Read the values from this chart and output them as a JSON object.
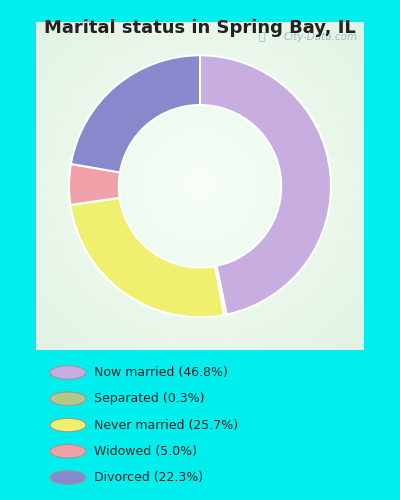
{
  "title": "Marital status in Spring Bay, IL",
  "title_fontsize": 13,
  "slices": [
    46.8,
    0.3,
    25.7,
    5.0,
    22.3
  ],
  "labels": [
    "Now married (46.8%)",
    "Separated (0.3%)",
    "Never married (25.7%)",
    "Widowed (5.0%)",
    "Divorced (22.3%)"
  ],
  "colors": [
    "#c8aee0",
    "#a8c890",
    "#f0f070",
    "#f0a0a8",
    "#8888cc"
  ],
  "legend_colors": [
    "#c8aee0",
    "#b0c888",
    "#f0f070",
    "#f0a0a8",
    "#8888cc"
  ],
  "outer_bg": "#00eeee",
  "chart_bg": "#e8f4e8",
  "watermark": "City-Data.com",
  "donut_width": 0.38,
  "start_angle": 90
}
